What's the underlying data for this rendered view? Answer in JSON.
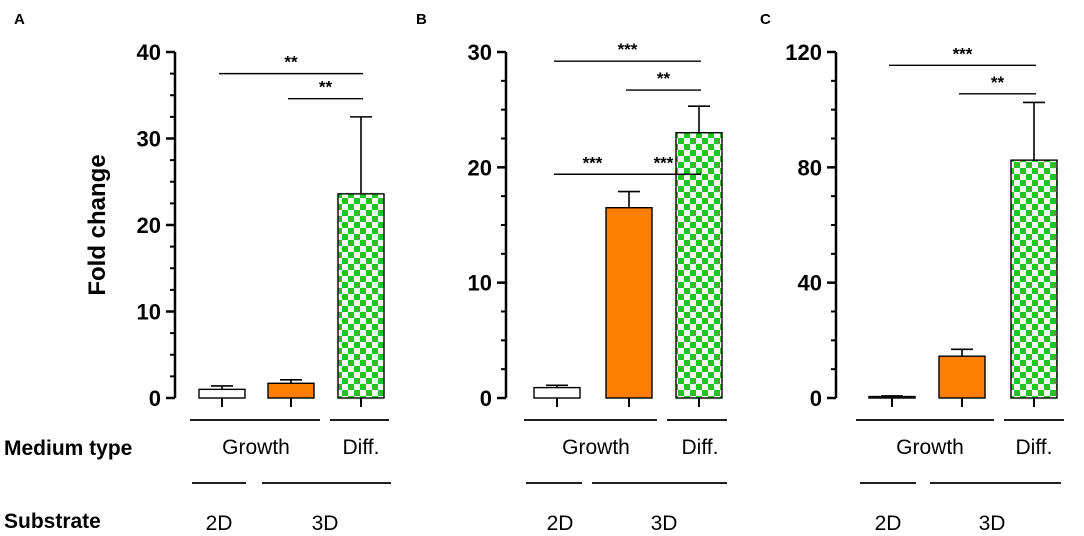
{
  "figure": {
    "row_labels": {
      "medium": "Medium type",
      "substrate": "Substrate"
    }
  },
  "chart_data": [
    {
      "type": "bar",
      "panel_label": "A",
      "ylabel": "Fold change",
      "ylim": [
        0,
        40
      ],
      "yticks": [
        0,
        10,
        20,
        30,
        40
      ],
      "categories": [
        "2D Growth",
        "3D Growth",
        "3D Diff."
      ],
      "values": [
        1.0,
        1.7,
        23.6
      ],
      "errors": [
        0.4,
        0.4,
        8.9
      ],
      "bar_fills": [
        "white",
        "orange",
        "green-checker"
      ],
      "medium_labels": [
        "Growth",
        "Diff."
      ],
      "substrate_labels": [
        "2D",
        "3D"
      ],
      "significance": [
        {
          "from": 0,
          "to": 2,
          "label": "**",
          "y": 37.5
        },
        {
          "from": 1,
          "to": 2,
          "label": "**",
          "y": 34.6
        }
      ]
    },
    {
      "type": "bar",
      "panel_label": "B",
      "ylabel": "",
      "ylim": [
        0,
        30
      ],
      "yticks": [
        0,
        10,
        20,
        30
      ],
      "categories": [
        "2D Growth",
        "3D Growth",
        "3D Diff."
      ],
      "values": [
        0.9,
        16.5,
        23.0
      ],
      "errors": [
        0.2,
        1.4,
        2.3
      ],
      "bar_fills": [
        "white",
        "orange",
        "green-checker"
      ],
      "medium_labels": [
        "Growth",
        "Diff."
      ],
      "substrate_labels": [
        "2D",
        "3D"
      ],
      "significance": [
        {
          "from": 0,
          "to": 2,
          "label": "***",
          "y": 29.2
        },
        {
          "from": 1,
          "to": 2,
          "label": "***",
          "y": 19.4
        },
        {
          "from": 0,
          "to": 1,
          "label": "***",
          "y": 19.4
        },
        {
          "from": 1,
          "to": 2,
          "label": "**",
          "y": 26.7
        }
      ]
    },
    {
      "type": "bar",
      "panel_label": "C",
      "ylabel": "",
      "ylim": [
        0,
        120
      ],
      "yticks": [
        0,
        40,
        80,
        120
      ],
      "categories": [
        "2D Growth",
        "3D Growth",
        "3D Diff."
      ],
      "values": [
        0.5,
        14.5,
        82.5
      ],
      "errors": [
        0.2,
        2.4,
        20.0
      ],
      "bar_fills": [
        "white",
        "orange",
        "green-checker"
      ],
      "medium_labels": [
        "Growth",
        "Diff."
      ],
      "substrate_labels": [
        "2D",
        "3D"
      ],
      "significance": [
        {
          "from": 0,
          "to": 2,
          "label": "***",
          "y": 115.4
        },
        {
          "from": 1,
          "to": 2,
          "label": "**",
          "y": 105.5
        }
      ]
    }
  ],
  "colors": {
    "orange": "#ff7f00",
    "green": "#22c322",
    "axis": "#000000",
    "bar_outline": "#000000"
  }
}
